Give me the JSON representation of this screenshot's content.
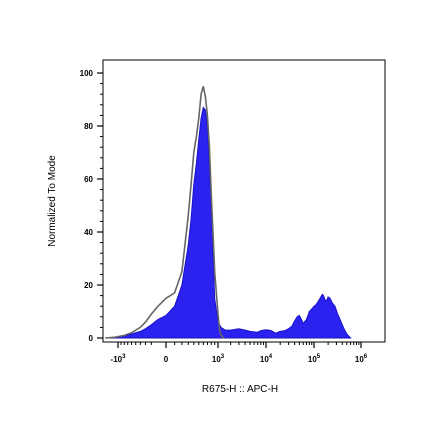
{
  "chart_data": {
    "type": "area",
    "xlabel": "R675-H :: APC-H",
    "ylabel": "Normalized To Mode",
    "ylim": [
      0,
      100
    ],
    "y_ticks": [
      "0",
      "20",
      "40",
      "60",
      "80",
      "100"
    ],
    "x_scale": "biexponential",
    "x_ticks": [
      {
        "base": "-10",
        "exp": "3",
        "value": -1000
      },
      {
        "base": "0",
        "exp": "",
        "value": 0
      },
      {
        "base": "10",
        "exp": "3",
        "value": 1000
      },
      {
        "base": "10",
        "exp": "4",
        "value": 10000
      },
      {
        "base": "10",
        "exp": "5",
        "value": 100000
      },
      {
        "base": "10",
        "exp": "6",
        "value": 1000000
      }
    ],
    "grid": false,
    "legend": "none",
    "colors": {
      "sample_fill": "#2b22f0",
      "sample_stroke": "#1a12c8",
      "control_line": "#666666"
    },
    "series": [
      {
        "role": "sample",
        "style": "filled",
        "x": [
          -1500,
          -1100,
          -800,
          -600,
          -400,
          -300,
          -200,
          -100,
          0,
          100,
          200,
          300,
          350,
          400,
          450,
          500,
          550,
          600,
          650,
          700,
          800,
          900,
          1000,
          1200,
          1500,
          2000,
          3000,
          4000,
          5000,
          6000,
          7000,
          8000,
          10000,
          13000,
          16000,
          20000,
          25000,
          30000,
          35000,
          40000,
          45000,
          50000,
          55000,
          60000,
          70000,
          80000,
          90000,
          100000,
          110000,
          125000,
          140000,
          150000,
          160000,
          175000,
          190000,
          200000,
          220000,
          250000,
          280000,
          320000,
          360000,
          400000,
          450000,
          500000,
          600000
        ],
        "y": [
          0,
          0.2,
          0.8,
          1.5,
          2.5,
          3.5,
          5,
          7,
          8.5,
          12,
          20,
          35,
          45,
          58,
          66,
          75,
          83,
          87,
          86,
          80,
          50,
          15,
          6,
          4,
          3,
          3,
          3.5,
          3,
          2.5,
          2.3,
          2.2,
          2.8,
          3.1,
          2.8,
          1.8,
          2.5,
          2.8,
          3.5,
          4.5,
          6.5,
          8,
          8.5,
          7,
          5.5,
          7,
          10,
          11,
          12,
          12.5,
          14,
          15.5,
          16.5,
          16,
          14,
          14.5,
          15.5,
          15,
          13,
          12,
          9,
          7,
          5,
          3,
          1.5,
          0
        ]
      },
      {
        "role": "control",
        "style": "line",
        "x": [
          -1500,
          -1100,
          -800,
          -600,
          -400,
          -300,
          -200,
          -100,
          0,
          100,
          200,
          300,
          350,
          400,
          450,
          500,
          550,
          600,
          650,
          700,
          750,
          800,
          900,
          1000,
          1100,
          1200,
          1400
        ],
        "y": [
          0,
          0.3,
          1,
          2,
          4,
          6,
          9,
          12,
          15,
          17,
          25,
          46,
          58,
          70,
          76,
          83,
          92,
          95,
          91,
          84,
          72,
          55,
          25,
          9,
          3,
          1,
          0
        ]
      }
    ]
  }
}
